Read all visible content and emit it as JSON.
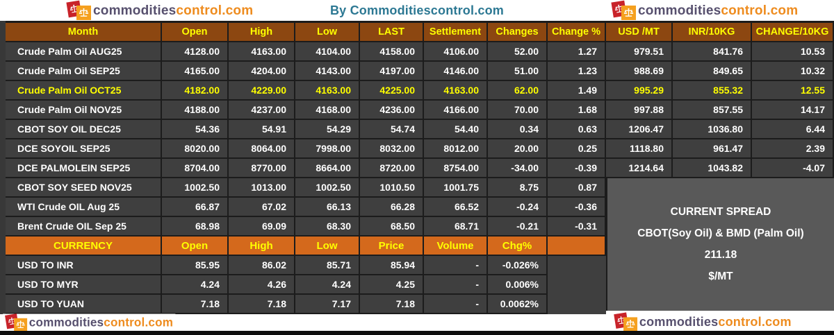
{
  "brand": {
    "logo_text_a": "commodities",
    "logo_text_b": "control.com"
  },
  "chart_data": {
    "type": "table",
    "title": "By Commoditiescontrol.com",
    "tables": [
      {
        "name": "futures",
        "headers": [
          "Month",
          "Open",
          "High",
          "Low",
          "LAST",
          "Settlement",
          "Changes",
          "Change %",
          "USD /MT",
          "INR/10KG",
          "CHANGE/10KG"
        ],
        "rows": [
          {
            "label": "Crude Palm Oil AUG25",
            "values": [
              "4128.00",
              "4163.00",
              "4104.00",
              "4158.00",
              "4106.00",
              "52.00",
              "1.27",
              "979.51",
              "841.76",
              "10.53"
            ],
            "highlight": false
          },
          {
            "label": "Crude Palm Oil SEP25",
            "values": [
              "4165.00",
              "4204.00",
              "4143.00",
              "4197.00",
              "4146.00",
              "51.00",
              "1.23",
              "988.69",
              "849.65",
              "10.32"
            ],
            "highlight": false
          },
          {
            "label": "Crude Palm Oil OCT25",
            "values": [
              "4182.00",
              "4229.00",
              "4163.00",
              "4225.00",
              "4163.00",
              "62.00",
              "1.49",
              "995.29",
              "855.32",
              "12.55"
            ],
            "highlight": true,
            "white_values": [
              6
            ]
          },
          {
            "label": "Crude Palm Oil NOV25",
            "values": [
              "4188.00",
              "4237.00",
              "4168.00",
              "4236.00",
              "4166.00",
              "70.00",
              "1.68",
              "997.88",
              "857.55",
              "14.17"
            ],
            "highlight": false
          },
          {
            "label": "CBOT SOY OIL DEC25",
            "values": [
              "54.36",
              "54.91",
              "54.29",
              "54.74",
              "54.40",
              "0.34",
              "0.63",
              "1206.47",
              "1036.80",
              "6.44"
            ],
            "highlight": false
          },
          {
            "label": "DCE SOYOIL SEP25",
            "values": [
              "8020.00",
              "8064.00",
              "7998.00",
              "8032.00",
              "8012.00",
              "20.00",
              "0.25",
              "1118.80",
              "961.47",
              "2.39"
            ],
            "highlight": false
          },
          {
            "label": "DCE PALMOLEIN SEP25",
            "values": [
              "8704.00",
              "8770.00",
              "8664.00",
              "8720.00",
              "8754.00",
              "-34.00",
              "-0.39",
              "1214.64",
              "1043.82",
              "-4.07"
            ],
            "highlight": false
          },
          {
            "label": "CBOT SOY SEED NOV25",
            "values": [
              "1002.50",
              "1013.00",
              "1002.50",
              "1010.50",
              "1001.75",
              "8.75",
              "0.87"
            ],
            "highlight": false
          },
          {
            "label": "WTI Crude OIL Aug 25",
            "values": [
              "66.87",
              "67.02",
              "66.13",
              "66.28",
              "66.52",
              "-0.24",
              "-0.36"
            ],
            "highlight": false
          },
          {
            "label": "Brent Crude OIL Sep 25",
            "values": [
              "68.98",
              "69.09",
              "68.30",
              "68.50",
              "68.71",
              "-0.21",
              "-0.31"
            ],
            "highlight": false
          }
        ]
      },
      {
        "name": "currency",
        "headers": [
          "CURRENCY",
          "Open",
          "High",
          "Low",
          "Price",
          "Volume",
          "Chg%"
        ],
        "rows": [
          {
            "label": "USD TO INR",
            "values": [
              "85.95",
              "86.02",
              "85.71",
              "85.94",
              "-",
              "-0.026%"
            ]
          },
          {
            "label": "USD TO MYR",
            "values": [
              "4.24",
              "4.26",
              "4.24",
              "4.25",
              "-",
              "0.006%"
            ]
          },
          {
            "label": "USD TO YUAN",
            "values": [
              "7.18",
              "7.18",
              "7.17",
              "7.18",
              "-",
              "0.0062%"
            ]
          }
        ]
      }
    ],
    "annotations": [
      "CURRENT SPREAD",
      "CBOT(Soy Oil) & BMD (Palm Oil)",
      "211.18",
      "$/MT"
    ]
  },
  "colors": {
    "header_brown": "#8C4711",
    "currency_orange": "#D4691C",
    "row_bg": "#3F3F3F",
    "gridline": "#1C1C1C",
    "spread_bg": "#595959",
    "highlight_yellow": "#FFFF00",
    "title_teal": "#2C7893",
    "logo_purple": "#57506E",
    "logo_orange": "#EE8C1F",
    "logo_red_square": "#C8232A",
    "logo_orange_square": "#F5A01F"
  }
}
